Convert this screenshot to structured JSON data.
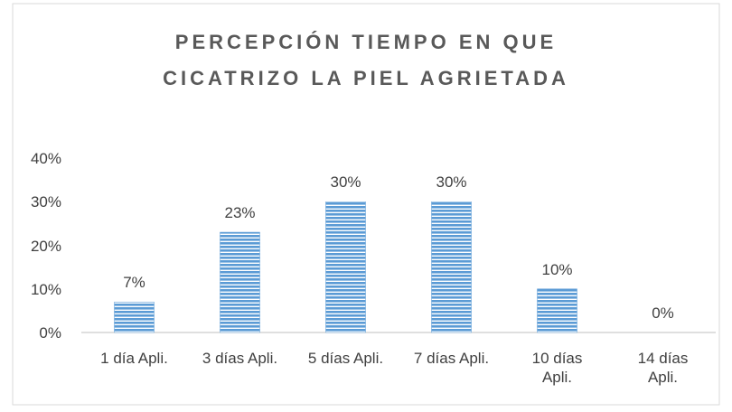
{
  "chart_data": {
    "type": "bar",
    "title": [
      "PERCEPCIÓN TIEMPO EN QUE",
      "CICATRIZO LA PIEL AGRIETADA"
    ],
    "categories": [
      "1 día Apli.",
      "3 días Apli.",
      "5 días Apli.",
      "7 días Apli.",
      "10 días Apli.",
      "14 días Apli."
    ],
    "values": [
      7,
      23,
      30,
      30,
      10,
      0
    ],
    "value_labels": [
      "7%",
      "23%",
      "30%",
      "30%",
      "10%",
      "0%"
    ],
    "color": "#5b9bd5",
    "ylim": [
      0,
      40
    ],
    "yticks": [
      {
        "value": 0,
        "label": "0%"
      },
      {
        "value": 10,
        "label": "10%"
      },
      {
        "value": 20,
        "label": "20%"
      },
      {
        "value": 30,
        "label": "30%"
      },
      {
        "value": 40,
        "label": "40%"
      }
    ],
    "grid": false
  }
}
